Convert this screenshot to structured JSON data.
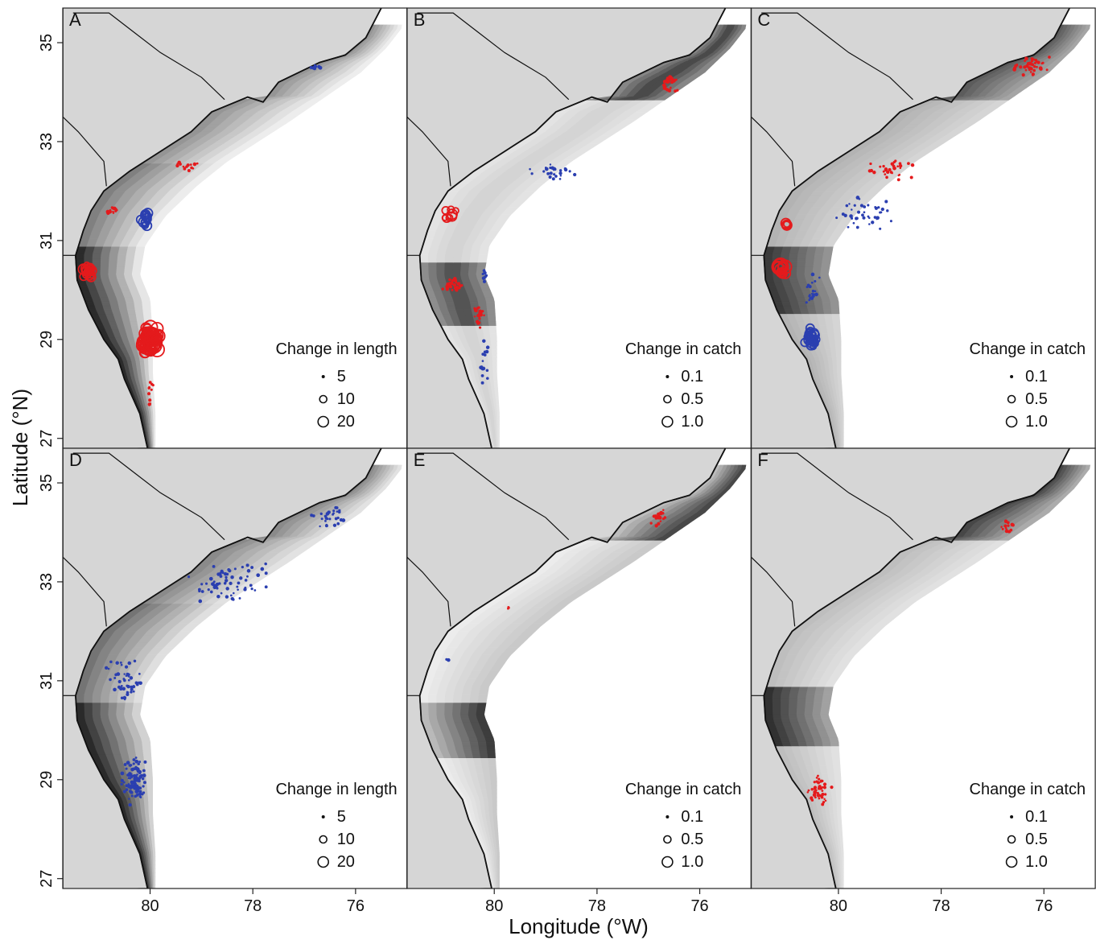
{
  "figure": {
    "x_axis_title": "Longitude (°W)",
    "y_axis_title": "Latitude (°N)",
    "longitude_ticks": [
      "80",
      "78",
      "76"
    ],
    "latitude_ticks": [
      "35",
      "33",
      "31",
      "29",
      "27"
    ],
    "map_extent": {
      "lon_west": 81.7,
      "lon_east": 75.0,
      "lat_south": 26.8,
      "lat_north": 35.7
    }
  },
  "colors": {
    "land": "#d6d6d6",
    "ocean": "#ffffff",
    "increase": "#e41a1c",
    "decrease": "#2b3fb0",
    "coast": "#111111"
  },
  "panels": [
    {
      "id": "A",
      "legend_title": "Change in length",
      "legend_values": [
        "5",
        "10",
        "20"
      ],
      "shading_variant": "a",
      "clusters": [
        {
          "color": "increase",
          "lat": 29.0,
          "lon": 80.0,
          "spread": [
            0.22,
            0.35
          ],
          "count": 60,
          "size": "large"
        },
        {
          "color": "increase",
          "lat": 30.4,
          "lon": 81.2,
          "spread": [
            0.15,
            0.2
          ],
          "count": 18,
          "size": "medium"
        },
        {
          "color": "increase",
          "lat": 31.6,
          "lon": 80.7,
          "spread": [
            0.2,
            0.15
          ],
          "count": 14,
          "size": "small"
        },
        {
          "color": "increase",
          "lat": 32.5,
          "lon": 79.3,
          "spread": [
            0.3,
            0.12
          ],
          "count": 16,
          "size": "small"
        },
        {
          "color": "increase",
          "lat": 28.0,
          "lon": 80.0,
          "spread": [
            0.08,
            0.35
          ],
          "count": 10,
          "size": "small"
        },
        {
          "color": "decrease",
          "lat": 31.4,
          "lon": 80.1,
          "spread": [
            0.1,
            0.2
          ],
          "count": 14,
          "size": "medium"
        },
        {
          "color": "decrease",
          "lat": 34.5,
          "lon": 76.8,
          "spread": [
            0.15,
            0.08
          ],
          "count": 8,
          "size": "small"
        }
      ]
    },
    {
      "id": "B",
      "legend_title": "Change in catch",
      "legend_values": [
        "0.1",
        "0.5",
        "1.0"
      ],
      "shading_variant": "b",
      "clusters": [
        {
          "color": "increase",
          "lat": 34.2,
          "lon": 76.6,
          "spread": [
            0.2,
            0.3
          ],
          "count": 30,
          "size": "small"
        },
        {
          "color": "increase",
          "lat": 30.1,
          "lon": 80.8,
          "spread": [
            0.3,
            0.2
          ],
          "count": 30,
          "size": "small"
        },
        {
          "color": "increase",
          "lat": 29.5,
          "lon": 80.3,
          "spread": [
            0.15,
            0.3
          ],
          "count": 20,
          "size": "small"
        },
        {
          "color": "increase",
          "lat": 31.5,
          "lon": 80.9,
          "spread": [
            0.2,
            0.2
          ],
          "count": 8,
          "size": "medium"
        },
        {
          "color": "decrease",
          "lat": 32.4,
          "lon": 78.8,
          "spread": [
            0.6,
            0.25
          ],
          "count": 25,
          "size": "small"
        },
        {
          "color": "decrease",
          "lat": 28.5,
          "lon": 80.2,
          "spread": [
            0.12,
            0.6
          ],
          "count": 15,
          "size": "small"
        },
        {
          "color": "decrease",
          "lat": 30.3,
          "lon": 80.2,
          "spread": [
            0.1,
            0.3
          ],
          "count": 8,
          "size": "small"
        }
      ]
    },
    {
      "id": "C",
      "legend_title": "Change in catch",
      "legend_values": [
        "0.1",
        "0.5",
        "1.0"
      ],
      "shading_variant": "c",
      "clusters": [
        {
          "color": "increase",
          "lat": 34.5,
          "lon": 76.3,
          "spread": [
            0.5,
            0.3
          ],
          "count": 40,
          "size": "small"
        },
        {
          "color": "increase",
          "lat": 32.4,
          "lon": 79.0,
          "spread": [
            0.7,
            0.3
          ],
          "count": 30,
          "size": "small"
        },
        {
          "color": "increase",
          "lat": 30.4,
          "lon": 81.1,
          "spread": [
            0.15,
            0.15
          ],
          "count": 12,
          "size": "large"
        },
        {
          "color": "increase",
          "lat": 31.3,
          "lon": 81.0,
          "spread": [
            0.1,
            0.1
          ],
          "count": 4,
          "size": "medium"
        },
        {
          "color": "decrease",
          "lat": 29.0,
          "lon": 80.5,
          "spread": [
            0.2,
            0.3
          ],
          "count": 30,
          "size": "medium"
        },
        {
          "color": "decrease",
          "lat": 31.5,
          "lon": 79.5,
          "spread": [
            0.8,
            0.5
          ],
          "count": 40,
          "size": "small"
        },
        {
          "color": "decrease",
          "lat": 30.0,
          "lon": 80.5,
          "spread": [
            0.2,
            0.5
          ],
          "count": 20,
          "size": "small"
        }
      ]
    },
    {
      "id": "D",
      "legend_title": "Change in length",
      "legend_values": [
        "5",
        "10",
        "20"
      ],
      "shading_variant": "d",
      "clusters": [
        {
          "color": "decrease",
          "lat": 29.0,
          "lon": 80.3,
          "spread": [
            0.3,
            0.6
          ],
          "count": 110,
          "size": "small"
        },
        {
          "color": "decrease",
          "lat": 31.0,
          "lon": 80.5,
          "spread": [
            0.4,
            0.6
          ],
          "count": 50,
          "size": "small"
        },
        {
          "color": "decrease",
          "lat": 33.0,
          "lon": 78.5,
          "spread": [
            0.9,
            0.6
          ],
          "count": 70,
          "size": "small"
        },
        {
          "color": "decrease",
          "lat": 34.3,
          "lon": 76.5,
          "spread": [
            0.5,
            0.3
          ],
          "count": 30,
          "size": "small"
        }
      ]
    },
    {
      "id": "E",
      "legend_title": "Change in catch",
      "legend_values": [
        "0.1",
        "0.5",
        "1.0"
      ],
      "shading_variant": "e",
      "clusters": [
        {
          "color": "increase",
          "lat": 34.3,
          "lon": 76.8,
          "spread": [
            0.2,
            0.25
          ],
          "count": 20,
          "size": "small"
        },
        {
          "color": "increase",
          "lat": 32.5,
          "lon": 79.7,
          "spread": [
            0.05,
            0.05
          ],
          "count": 3,
          "size": "small"
        },
        {
          "color": "decrease",
          "lat": 31.4,
          "lon": 80.9,
          "spread": [
            0.05,
            0.1
          ],
          "count": 3,
          "size": "small"
        }
      ]
    },
    {
      "id": "F",
      "legend_title": "Change in catch",
      "legend_values": [
        "0.1",
        "0.5",
        "1.0"
      ],
      "shading_variant": "f",
      "clusters": [
        {
          "color": "increase",
          "lat": 34.1,
          "lon": 76.7,
          "spread": [
            0.2,
            0.2
          ],
          "count": 16,
          "size": "small"
        },
        {
          "color": "increase",
          "lat": 28.8,
          "lon": 80.4,
          "spread": [
            0.3,
            0.4
          ],
          "count": 45,
          "size": "small"
        }
      ]
    }
  ]
}
